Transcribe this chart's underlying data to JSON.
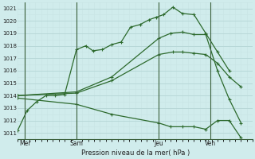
{
  "background_color": "#d0ecec",
  "grid_color_major": "#b8d8d8",
  "grid_color_minor": "#c8e4e4",
  "line_color": "#2d6a2d",
  "title": "Pression niveau de la mer( hPa )",
  "ylim": [
    1010.5,
    1021.5
  ],
  "xlim": [
    0,
    10.0
  ],
  "yticks": [
    1011,
    1012,
    1013,
    1014,
    1015,
    1016,
    1017,
    1018,
    1019,
    1020,
    1021
  ],
  "xtick_labels": [
    "Mer",
    "Sam",
    "Jeu",
    "Ven"
  ],
  "xtick_positions": [
    0.3,
    2.5,
    6.0,
    8.2
  ],
  "vline_positions": [
    0.3,
    2.5,
    6.0,
    8.2
  ],
  "series": [
    {
      "x": [
        0.0,
        0.4,
        0.8,
        1.2,
        1.6,
        2.0,
        2.5,
        2.9,
        3.2,
        3.6,
        4.0,
        4.4,
        4.8,
        5.2,
        5.6,
        5.9,
        6.2,
        6.6,
        7.0,
        7.5,
        8.0,
        8.5,
        9.0
      ],
      "y": [
        1011.2,
        1012.8,
        1013.5,
        1014.0,
        1014.0,
        1014.1,
        1017.7,
        1018.0,
        1017.6,
        1017.7,
        1018.1,
        1018.3,
        1019.5,
        1019.7,
        1020.1,
        1020.3,
        1020.5,
        1021.1,
        1020.6,
        1020.5,
        1019.0,
        1017.5,
        1016.0
      ],
      "marker": "+"
    },
    {
      "x": [
        0.0,
        2.5,
        4.0,
        6.0,
        6.6,
        7.0,
        7.5,
        8.0,
        8.5,
        9.0,
        9.5
      ],
      "y": [
        1014.0,
        1014.2,
        1015.2,
        1017.3,
        1017.5,
        1017.5,
        1017.4,
        1017.3,
        1016.6,
        1015.5,
        1014.7
      ],
      "marker": "+"
    },
    {
      "x": [
        0.0,
        2.5,
        4.0,
        6.0,
        6.5,
        7.0,
        7.5,
        8.0,
        8.5,
        9.0,
        9.5
      ],
      "y": [
        1014.0,
        1014.3,
        1015.5,
        1018.6,
        1019.0,
        1019.1,
        1018.9,
        1018.9,
        1016.0,
        1013.7,
        1011.8
      ],
      "marker": "+"
    },
    {
      "x": [
        0.0,
        2.5,
        4.0,
        6.0,
        6.5,
        7.0,
        7.5,
        8.0,
        8.5,
        9.0,
        9.5
      ],
      "y": [
        1013.8,
        1013.3,
        1012.5,
        1011.8,
        1011.5,
        1011.5,
        1011.5,
        1011.3,
        1012.0,
        1012.0,
        1010.6
      ],
      "marker": "+"
    }
  ]
}
